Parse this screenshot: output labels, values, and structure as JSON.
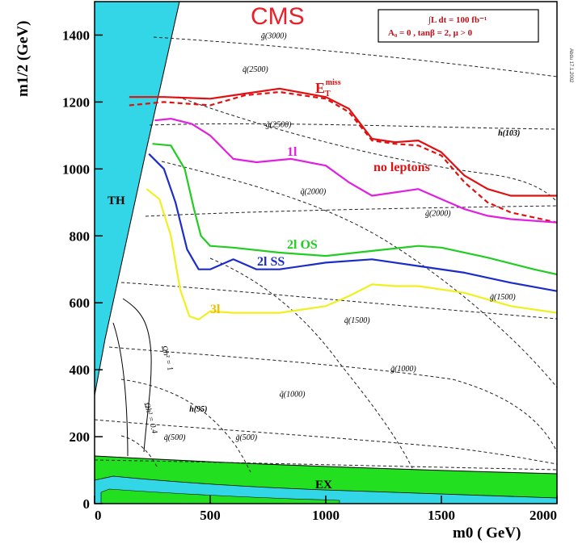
{
  "chart_data": {
    "type": "line",
    "title": "CMS",
    "xlabel": "m0 ( GeV)",
    "ylabel": "m1/2 (GeV)",
    "xlim": [
      0,
      2000
    ],
    "ylim": [
      0,
      1500
    ],
    "x_ticks": [
      "0",
      "500",
      "1000",
      "1500",
      "2000"
    ],
    "y_ticks": [
      "0",
      "200",
      "400",
      "600",
      "800",
      "1000",
      "1200",
      "1400"
    ],
    "y_tick_values": [
      0,
      200,
      400,
      600,
      800,
      1000,
      1200,
      1400
    ],
    "x_tick_values": [
      0,
      500,
      1000,
      1500,
      2000
    ],
    "info_box": [
      "∫L dt = 100 fb⁻¹",
      "A₀ = 0 , tanβ = 2, μ > 0"
    ],
    "side_note": "Abdu 17.1.2002",
    "regions": [
      {
        "name": "TH",
        "color": "#33d6e6"
      },
      {
        "name": "EX",
        "color": "#22e020"
      }
    ],
    "series": [
      {
        "name": "E_T^miss",
        "label_main": "E",
        "label_sub": "T",
        "label_sup": "miss",
        "color": "#e01010",
        "x": [
          150,
          300,
          500,
          650,
          800,
          1000,
          1100,
          1200,
          1300,
          1400,
          1500,
          1600,
          1700,
          1800,
          2000
        ],
        "y": [
          1215,
          1215,
          1210,
          1225,
          1240,
          1215,
          1180,
          1090,
          1080,
          1085,
          1050,
          980,
          940,
          920,
          920
        ]
      },
      {
        "name": "no leptons",
        "color": "#e01010",
        "dashed": true,
        "x": [
          150,
          300,
          500,
          650,
          800,
          1000,
          1100,
          1200,
          1300,
          1400,
          1500,
          1600,
          1700,
          1800,
          2000
        ],
        "y": [
          1190,
          1200,
          1190,
          1220,
          1230,
          1210,
          1170,
          1085,
          1075,
          1070,
          1040,
          960,
          900,
          870,
          840
        ]
      },
      {
        "name": "1l",
        "color": "#e020e0",
        "x": [
          260,
          330,
          420,
          500,
          600,
          700,
          850,
          1000,
          1100,
          1200,
          1300,
          1400,
          1500,
          1600,
          1700,
          1800,
          2000
        ],
        "y": [
          1145,
          1150,
          1135,
          1100,
          1030,
          1020,
          1030,
          1010,
          960,
          920,
          930,
          940,
          910,
          880,
          860,
          850,
          840
        ]
      },
      {
        "name": "2l OS",
        "color": "#22cc22",
        "x": [
          250,
          330,
          390,
          430,
          460,
          500,
          600,
          800,
          1000,
          1200,
          1400,
          1500,
          1700,
          1900,
          2000
        ],
        "y": [
          1075,
          1070,
          1000,
          880,
          800,
          770,
          765,
          750,
          740,
          755,
          770,
          765,
          735,
          700,
          685
        ]
      },
      {
        "name": "2l SS",
        "color": "#1c2cc8",
        "x": [
          235,
          300,
          350,
          400,
          450,
          500,
          600,
          700,
          800,
          1000,
          1200,
          1400,
          1600,
          1800,
          2000
        ],
        "y": [
          1045,
          1000,
          900,
          760,
          700,
          700,
          730,
          700,
          700,
          720,
          730,
          710,
          690,
          660,
          635
        ]
      },
      {
        "name": "3l",
        "color": "#f0f020",
        "x": [
          225,
          280,
          330,
          370,
          410,
          450,
          500,
          600,
          800,
          1000,
          1100,
          1200,
          1300,
          1400,
          1600,
          1800,
          2000
        ],
        "y": [
          940,
          910,
          800,
          640,
          560,
          550,
          575,
          570,
          570,
          590,
          620,
          655,
          650,
          650,
          630,
          590,
          570
        ]
      }
    ],
    "contour_labels": [
      {
        "text": "g̃(3000)",
        "x": 720,
        "y": 1390
      },
      {
        "text": "q̃(2500)",
        "x": 640,
        "y": 1290
      },
      {
        "text": "g̃(2500)",
        "x": 740,
        "y": 1125
      },
      {
        "text": "q̃(2000)",
        "x": 890,
        "y": 925
      },
      {
        "text": "g̃(2000)",
        "x": 1430,
        "y": 860
      },
      {
        "text": "g̃(1500)",
        "x": 1710,
        "y": 610
      },
      {
        "text": "q̃(1500)",
        "x": 1080,
        "y": 540
      },
      {
        "text": "g̃(1000)",
        "x": 1280,
        "y": 395
      },
      {
        "text": "q̃(1000)",
        "x": 800,
        "y": 320
      },
      {
        "text": "g̃(500)",
        "x": 610,
        "y": 190
      },
      {
        "text": "q̃(500)",
        "x": 300,
        "y": 190
      },
      {
        "text": "h(95)",
        "x": 410,
        "y": 275
      },
      {
        "text": "h(103)",
        "x": 1745,
        "y": 1100
      },
      {
        "text": "Ωh² = 1",
        "x": 290,
        "y": 470
      },
      {
        "text": "Ωh² = 0.4",
        "x": 215,
        "y": 300
      }
    ]
  }
}
